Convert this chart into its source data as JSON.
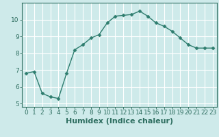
{
  "x": [
    0,
    1,
    2,
    3,
    4,
    5,
    6,
    7,
    8,
    9,
    10,
    11,
    12,
    13,
    14,
    15,
    16,
    17,
    18,
    19,
    20,
    21,
    22,
    23
  ],
  "y": [
    6.8,
    6.9,
    5.6,
    5.4,
    5.3,
    6.8,
    8.2,
    8.5,
    8.9,
    9.1,
    9.8,
    10.2,
    10.25,
    10.3,
    10.5,
    10.2,
    9.8,
    9.6,
    9.3,
    8.9,
    8.5,
    8.3,
    8.3,
    8.3
  ],
  "line_color": "#2e7d6e",
  "marker": "D",
  "marker_size": 2.5,
  "bg_color": "#ceeaea",
  "grid_color": "#ffffff",
  "xlabel": "Humidex (Indice chaleur)",
  "xlabel_fontsize": 8,
  "xlim": [
    -0.5,
    23.5
  ],
  "ylim": [
    4.8,
    11.0
  ],
  "yticks": [
    5,
    6,
    7,
    8,
    9,
    10
  ],
  "xtick_labels": [
    "0",
    "1",
    "2",
    "3",
    "4",
    "5",
    "6",
    "7",
    "8",
    "9",
    "10",
    "11",
    "12",
    "13",
    "14",
    "15",
    "16",
    "17",
    "18",
    "19",
    "20",
    "21",
    "22",
    "23"
  ],
  "tick_color": "#2e6e60",
  "tick_fontsize": 6.5,
  "spine_color": "#2e6e60",
  "linewidth": 1.0
}
